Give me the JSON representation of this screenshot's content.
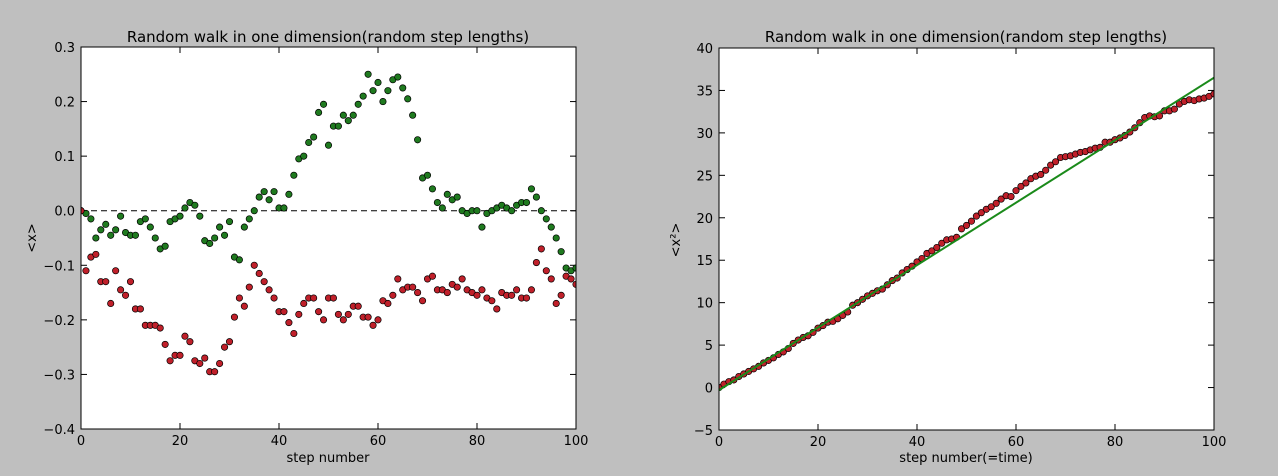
{
  "colors": {
    "green_points": "#1f7a1f",
    "red_points": "#c0202a",
    "fit_line": "#1a8a1a",
    "background": "#bfbfbf",
    "plot_bg": "#ffffff"
  },
  "chart_data": [
    {
      "type": "scatter",
      "title": "Random walk in one dimension(random step lengths)",
      "xlabel": "step number",
      "ylabel": "<x>",
      "xlim": [
        0,
        100
      ],
      "ylim": [
        -0.4,
        0.3
      ],
      "xticks": [
        "0",
        "20",
        "40",
        "60",
        "80",
        "100"
      ],
      "yticks": [
        "0.3",
        "0.2",
        "0.1",
        "0.0",
        "−0.1",
        "−0.2",
        "−0.3",
        "−0.4"
      ],
      "reference_line_y": 0.0,
      "series": [
        {
          "color": "#1f7a1f",
          "x": [
            0,
            1,
            2,
            3,
            4,
            5,
            6,
            7,
            8,
            9,
            10,
            11,
            12,
            13,
            14,
            15,
            16,
            17,
            18,
            19,
            20,
            21,
            22,
            23,
            24,
            25,
            26,
            27,
            28,
            29,
            30,
            31,
            32,
            33,
            34,
            35,
            36,
            37,
            38,
            39,
            40,
            41,
            42,
            43,
            44,
            45,
            46,
            47,
            48,
            49,
            50,
            51,
            52,
            53,
            54,
            55,
            56,
            57,
            58,
            59,
            60,
            61,
            62,
            63,
            64,
            65,
            66,
            67,
            68,
            69,
            70,
            71,
            72,
            73,
            74,
            75,
            76,
            77,
            78,
            79,
            80,
            81,
            82,
            83,
            84,
            85,
            86,
            87,
            88,
            89,
            90,
            91,
            92,
            93,
            94,
            95,
            96,
            97,
            98,
            99,
            100
          ],
          "values": [
            0.0,
            -0.005,
            -0.015,
            -0.05,
            -0.035,
            -0.025,
            -0.045,
            -0.035,
            -0.01,
            -0.04,
            -0.045,
            -0.045,
            -0.02,
            -0.015,
            -0.03,
            -0.05,
            -0.07,
            -0.065,
            -0.02,
            -0.015,
            -0.01,
            0.005,
            0.015,
            0.01,
            -0.01,
            -0.055,
            -0.06,
            -0.05,
            -0.03,
            -0.045,
            -0.02,
            -0.085,
            -0.09,
            -0.03,
            -0.015,
            0.0,
            0.025,
            0.035,
            0.02,
            0.035,
            0.005,
            0.005,
            0.03,
            0.065,
            0.095,
            0.1,
            0.125,
            0.135,
            0.18,
            0.195,
            0.12,
            0.155,
            0.155,
            0.175,
            0.165,
            0.175,
            0.195,
            0.21,
            0.25,
            0.22,
            0.235,
            0.2,
            0.22,
            0.24,
            0.245,
            0.225,
            0.205,
            0.175,
            0.13,
            0.06,
            0.065,
            0.04,
            0.015,
            0.005,
            0.03,
            0.02,
            0.025,
            0.0,
            -0.005,
            0.0,
            0.0,
            -0.03,
            -0.005,
            0.0,
            0.005,
            0.01,
            0.005,
            0.0,
            0.01,
            0.015,
            0.015,
            0.04,
            0.025,
            0.0,
            -0.015,
            -0.03,
            -0.05,
            -0.075,
            -0.105,
            -0.11,
            -0.105
          ]
        },
        {
          "color": "#c0202a",
          "x": [
            0,
            1,
            2,
            3,
            4,
            5,
            6,
            7,
            8,
            9,
            10,
            11,
            12,
            13,
            14,
            15,
            16,
            17,
            18,
            19,
            20,
            21,
            22,
            23,
            24,
            25,
            26,
            27,
            28,
            29,
            30,
            31,
            32,
            33,
            34,
            35,
            36,
            37,
            38,
            39,
            40,
            41,
            42,
            43,
            44,
            45,
            46,
            47,
            48,
            49,
            50,
            51,
            52,
            53,
            54,
            55,
            56,
            57,
            58,
            59,
            60,
            61,
            62,
            63,
            64,
            65,
            66,
            67,
            68,
            69,
            70,
            71,
            72,
            73,
            74,
            75,
            76,
            77,
            78,
            79,
            80,
            81,
            82,
            83,
            84,
            85,
            86,
            87,
            88,
            89,
            90,
            91,
            92,
            93,
            94,
            95,
            96,
            97,
            98,
            99,
            100
          ],
          "values": [
            0.0,
            -0.11,
            -0.085,
            -0.08,
            -0.13,
            -0.13,
            -0.17,
            -0.11,
            -0.145,
            -0.155,
            -0.13,
            -0.18,
            -0.18,
            -0.21,
            -0.21,
            -0.21,
            -0.215,
            -0.245,
            -0.275,
            -0.265,
            -0.265,
            -0.23,
            -0.24,
            -0.275,
            -0.28,
            -0.27,
            -0.295,
            -0.295,
            -0.28,
            -0.25,
            -0.24,
            -0.195,
            -0.16,
            -0.175,
            -0.14,
            -0.1,
            -0.115,
            -0.13,
            -0.145,
            -0.16,
            -0.185,
            -0.185,
            -0.205,
            -0.225,
            -0.19,
            -0.17,
            -0.16,
            -0.16,
            -0.185,
            -0.2,
            -0.16,
            -0.16,
            -0.19,
            -0.2,
            -0.19,
            -0.175,
            -0.175,
            -0.195,
            -0.195,
            -0.21,
            -0.2,
            -0.165,
            -0.17,
            -0.155,
            -0.125,
            -0.145,
            -0.14,
            -0.14,
            -0.15,
            -0.165,
            -0.125,
            -0.12,
            -0.145,
            -0.145,
            -0.15,
            -0.135,
            -0.14,
            -0.125,
            -0.145,
            -0.15,
            -0.155,
            -0.145,
            -0.16,
            -0.165,
            -0.18,
            -0.15,
            -0.155,
            -0.155,
            -0.145,
            -0.16,
            -0.16,
            -0.145,
            -0.095,
            -0.07,
            -0.11,
            -0.125,
            -0.17,
            -0.155,
            -0.12,
            -0.125,
            -0.135
          ]
        }
      ]
    },
    {
      "type": "scatter",
      "title": "Random walk in one dimension(random step lengths)",
      "xlabel": "step number(=time)",
      "ylabel": "<x²>",
      "xlim": [
        0,
        100
      ],
      "ylim": [
        -5,
        40
      ],
      "xticks": [
        "0",
        "20",
        "40",
        "60",
        "80",
        "100"
      ],
      "yticks": [
        "40",
        "35",
        "30",
        "25",
        "20",
        "15",
        "10",
        "5",
        "0",
        "−5"
      ],
      "series": [
        {
          "color": "#c0202a",
          "x": [
            0,
            1,
            2,
            3,
            4,
            5,
            6,
            7,
            8,
            9,
            10,
            11,
            12,
            13,
            14,
            15,
            16,
            17,
            18,
            19,
            20,
            21,
            22,
            23,
            24,
            25,
            26,
            27,
            28,
            29,
            30,
            31,
            32,
            33,
            34,
            35,
            36,
            37,
            38,
            39,
            40,
            41,
            42,
            43,
            44,
            45,
            46,
            47,
            48,
            49,
            50,
            51,
            52,
            53,
            54,
            55,
            56,
            57,
            58,
            59,
            60,
            61,
            62,
            63,
            64,
            65,
            66,
            67,
            68,
            69,
            70,
            71,
            72,
            73,
            74,
            75,
            76,
            77,
            78,
            79,
            80,
            81,
            82,
            83,
            84,
            85,
            86,
            87,
            88,
            89,
            90,
            91,
            92,
            93,
            94,
            95,
            96,
            97,
            98,
            99,
            100
          ],
          "values": [
            0.0,
            0.4,
            0.7,
            0.9,
            1.3,
            1.6,
            1.9,
            2.2,
            2.5,
            2.9,
            3.2,
            3.5,
            3.9,
            4.2,
            4.6,
            5.2,
            5.6,
            5.9,
            6.1,
            6.5,
            7.0,
            7.3,
            7.7,
            7.8,
            8.1,
            8.5,
            8.9,
            9.7,
            10.0,
            10.4,
            10.8,
            11.1,
            11.4,
            11.6,
            12.1,
            12.6,
            12.9,
            13.5,
            13.9,
            14.3,
            14.8,
            15.2,
            15.8,
            16.1,
            16.5,
            17.0,
            17.4,
            17.5,
            17.7,
            18.7,
            19.1,
            19.6,
            20.2,
            20.6,
            21.0,
            21.3,
            21.7,
            22.2,
            22.6,
            22.5,
            23.2,
            23.7,
            24.1,
            24.6,
            24.9,
            25.1,
            25.6,
            26.2,
            26.6,
            27.1,
            27.2,
            27.3,
            27.5,
            27.7,
            27.8,
            28.0,
            28.2,
            28.3,
            28.9,
            28.9,
            29.2,
            29.4,
            29.7,
            30.1,
            30.6,
            31.2,
            31.8,
            32.0,
            31.9,
            32.0,
            32.6,
            32.6,
            32.8,
            33.4,
            33.7,
            33.9,
            33.8,
            34.0,
            34.1,
            34.3,
            34.6
          ]
        },
        {
          "type": "line",
          "color": "#1a8a1a",
          "x": [
            0,
            100
          ],
          "values": [
            -0.3,
            36.5
          ]
        }
      ]
    }
  ]
}
